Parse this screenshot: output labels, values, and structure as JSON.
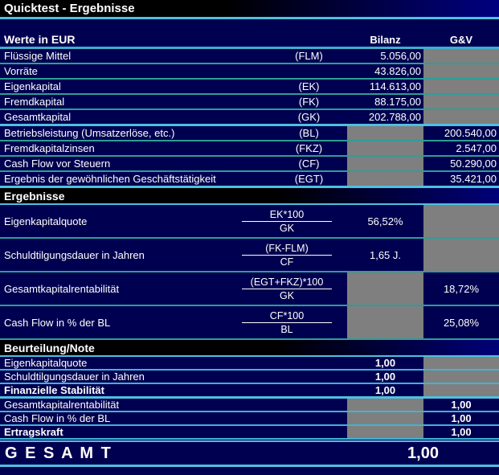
{
  "title": "Quicktest - Ergebnisse",
  "header": {
    "label": "Werte in EUR",
    "bilanz": "Bilanz",
    "gv": "G&V"
  },
  "werte": {
    "rows": [
      {
        "label": "Flüssige Mittel",
        "code": "(FLM)",
        "bilanz": "5.056,00",
        "gv": ""
      },
      {
        "label": "Vorräte",
        "code": "",
        "bilanz": "43.826,00",
        "gv": ""
      },
      {
        "label": "Eigenkapital",
        "code": "(EK)",
        "bilanz": "114.613,00",
        "gv": ""
      },
      {
        "label": "Fremdkapital",
        "code": "(FK)",
        "bilanz": "88.175,00",
        "gv": ""
      },
      {
        "label": "Gesamtkapital",
        "code": "(GK)",
        "bilanz": "202.788,00",
        "gv": ""
      },
      {
        "label": "Betriebsleistung (Umsatzerlöse, etc.)",
        "code": "(BL)",
        "bilanz": "",
        "gv": "200.540,00"
      },
      {
        "label": "Fremdkapitalzinsen",
        "code": "(FKZ)",
        "bilanz": "",
        "gv": "2.547,00"
      },
      {
        "label": "Cash Flow vor Steuern",
        "code": "(CF)",
        "bilanz": "",
        "gv": "50.290,00"
      },
      {
        "label": "Ergebnis der gewöhnlichen Geschäftstätigkeit",
        "code": "(EGT)",
        "bilanz": "",
        "gv": "35.421,00"
      }
    ]
  },
  "ergebnisse": {
    "title": "Ergebnisse",
    "rows": [
      {
        "label": "Eigenkapitalquote",
        "formula_top": "EK*100",
        "formula_bottom": "GK",
        "bilanz": "56,52%",
        "gv": ""
      },
      {
        "label": "Schuldtilgungsdauer in Jahren",
        "formula_top": "(FK-FLM)",
        "formula_bottom": "CF",
        "bilanz": "1,65 J.",
        "gv": ""
      },
      {
        "label": "Gesamtkapitalrentabilität",
        "formula_top": "(EGT+FKZ)*100",
        "formula_bottom": "GK",
        "bilanz": "",
        "gv": "18,72%"
      },
      {
        "label": "Cash Flow in % der BL",
        "formula_top": "CF*100",
        "formula_bottom": "BL",
        "bilanz": "",
        "gv": "25,08%"
      }
    ]
  },
  "beurteilung": {
    "title": "Beurteilung/Note",
    "rows": [
      {
        "label": "Eigenkapitalquote",
        "bilanz": "1,00",
        "gv": ""
      },
      {
        "label": "Schuldtilgungsdauer in Jahren",
        "bilanz": "1,00",
        "gv": ""
      },
      {
        "label": "Finanzielle Stabilität",
        "bilanz": "1,00",
        "gv": ""
      },
      {
        "label": "Gesamtkapitalrentabilität",
        "bilanz": "",
        "gv": "1,00"
      },
      {
        "label": "Cash Flow in % der BL",
        "bilanz": "",
        "gv": "1,00"
      },
      {
        "label": "Ertragskraft",
        "bilanz": "",
        "gv": "1,00"
      }
    ]
  },
  "gesamt": {
    "label": "G E S A M T",
    "value": "1,00"
  },
  "colors": {
    "background": "#000050",
    "section_bar_start": "#000000",
    "section_bar_end": "#000080",
    "grid_teal": "#2E9E96",
    "grid_cyan": "#4FC0E0",
    "disabled_cell": "#7F7F7F",
    "text": "#FFFFFF"
  }
}
